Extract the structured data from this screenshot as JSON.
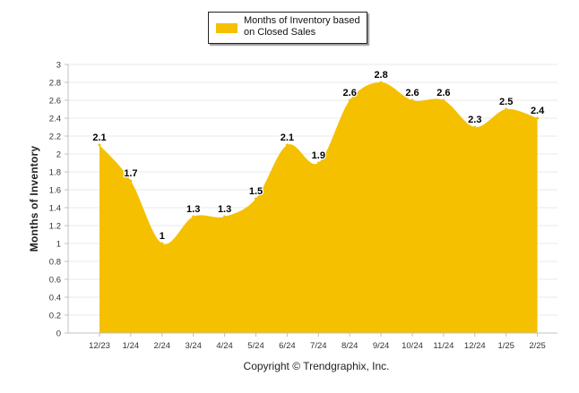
{
  "colors": {
    "area": "#F5C000",
    "grid": "#e8e8e8",
    "axis": "#c0c0c0",
    "text": "#333333"
  },
  "legend": {
    "label": "Months of Inventory based on Closed Sales",
    "position": "top-center"
  },
  "footer": {
    "text": "Copyright © Trendgraphix, Inc."
  },
  "chart_data": {
    "type": "area",
    "title": "",
    "xlabel": "",
    "ylabel": "Months of Inventory",
    "ylim": [
      0,
      3
    ],
    "ytick_step": 0.2,
    "yticks": [
      "0",
      "0.2",
      "0.4",
      "0.6",
      "0.8",
      "1",
      "1.2",
      "1.4",
      "1.6",
      "1.8",
      "2",
      "2.2",
      "2.4",
      "2.6",
      "2.8",
      "3"
    ],
    "grid": true,
    "categories": [
      "12/23",
      "1/24",
      "2/24",
      "3/24",
      "4/24",
      "5/24",
      "6/24",
      "7/24",
      "8/24",
      "9/24",
      "10/24",
      "11/24",
      "12/24",
      "1/25",
      "2/25"
    ],
    "series": [
      {
        "name": "Months of Inventory based on Closed Sales",
        "values": [
          2.1,
          1.7,
          1,
          1.3,
          1.3,
          1.5,
          2.1,
          1.9,
          2.6,
          2.8,
          2.6,
          2.6,
          2.3,
          2.5,
          2.4
        ],
        "labels": [
          "2.1",
          "1.7",
          "1",
          "1.3",
          "1.3",
          "1.5",
          "2.1",
          "1.9",
          "2.6",
          "2.8",
          "2.6",
          "2.6",
          "2.3",
          "2.5",
          "2.4"
        ]
      }
    ]
  }
}
